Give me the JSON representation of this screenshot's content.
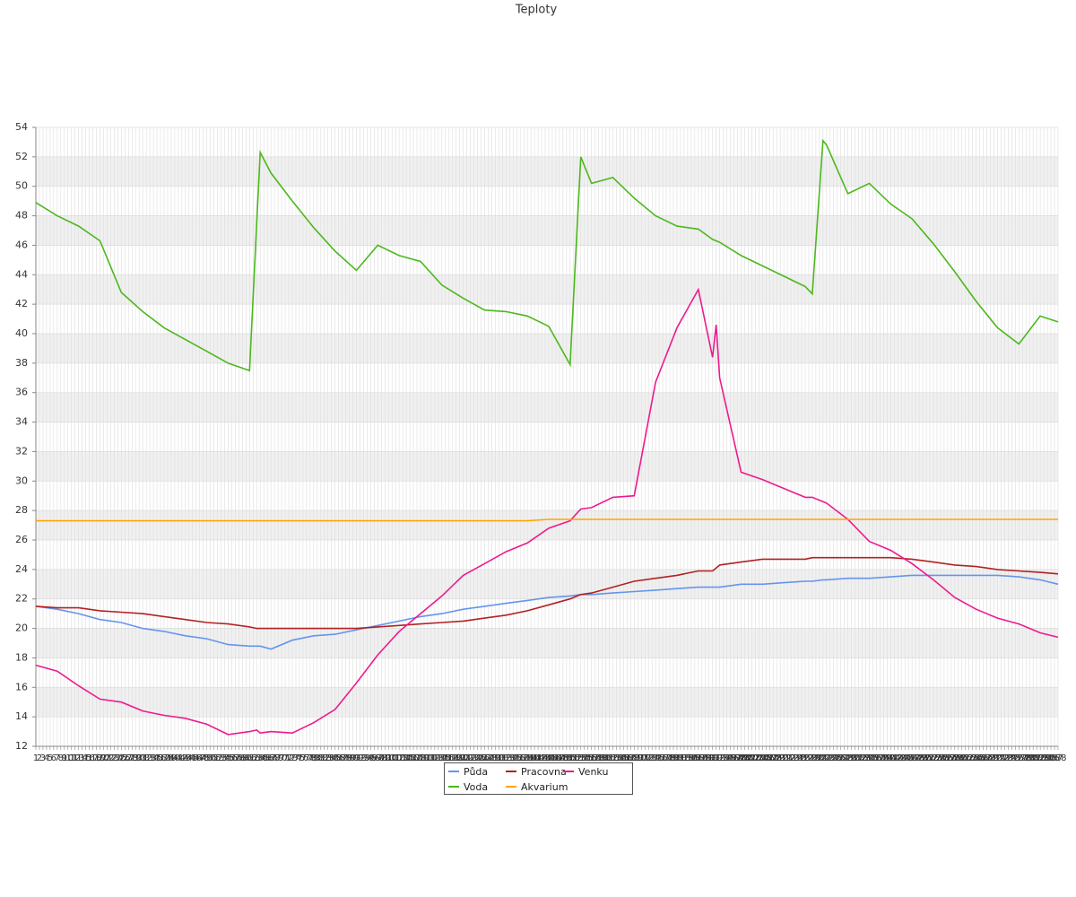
{
  "chart_data": {
    "type": "line",
    "title": "Teploty",
    "x": [
      1,
      7,
      13,
      19,
      25,
      31,
      37,
      43,
      49,
      55,
      61,
      63,
      64,
      67,
      73,
      79,
      85,
      91,
      97,
      103,
      109,
      115,
      121,
      127,
      133,
      139,
      145,
      151,
      154,
      157,
      163,
      169,
      175,
      181,
      187,
      191,
      192,
      193,
      199,
      205,
      211,
      217,
      219,
      222,
      223,
      229,
      235,
      241,
      247,
      253,
      259,
      265,
      271,
      277,
      283,
      288
    ],
    "series": [
      {
        "name": "Půda",
        "color": "#6495ed",
        "values": [
          21.5,
          21.3,
          21.0,
          20.6,
          20.4,
          20.0,
          19.8,
          19.5,
          19.3,
          18.9,
          18.8,
          18.8,
          18.8,
          18.6,
          19.2,
          19.5,
          19.6,
          19.9,
          20.2,
          20.5,
          20.8,
          21.0,
          21.3,
          21.5,
          21.7,
          21.9,
          22.1,
          22.2,
          22.3,
          22.3,
          22.4,
          22.5,
          22.6,
          22.7,
          22.8,
          22.8,
          22.8,
          22.8,
          23.0,
          23.0,
          23.1,
          23.2,
          23.2,
          23.3,
          23.3,
          23.4,
          23.4,
          23.5,
          23.6,
          23.6,
          23.6,
          23.6,
          23.6,
          23.5,
          23.3,
          23.0
        ]
      },
      {
        "name": "Pracovna",
        "color": "#b22222",
        "values": [
          21.5,
          21.4,
          21.4,
          21.2,
          21.1,
          21.0,
          20.8,
          20.6,
          20.4,
          20.3,
          20.1,
          20.0,
          20.0,
          20.0,
          20.0,
          20.0,
          20.0,
          20.0,
          20.1,
          20.2,
          20.3,
          20.4,
          20.5,
          20.7,
          20.9,
          21.2,
          21.6,
          22.0,
          22.3,
          22.4,
          22.8,
          23.2,
          23.4,
          23.6,
          23.9,
          23.9,
          24.1,
          24.3,
          24.5,
          24.7,
          24.7,
          24.7,
          24.8,
          24.8,
          24.8,
          24.8,
          24.8,
          24.8,
          24.7,
          24.5,
          24.3,
          24.2,
          24.0,
          23.9,
          23.8,
          23.7
        ]
      },
      {
        "name": "Venku",
        "color": "#ee1a8e",
        "values": [
          17.5,
          17.1,
          16.1,
          15.2,
          15.0,
          14.4,
          14.1,
          13.9,
          13.5,
          12.8,
          13.0,
          13.1,
          12.9,
          13.0,
          12.9,
          13.6,
          14.5,
          16.3,
          18.2,
          19.8,
          21.0,
          22.2,
          23.6,
          24.4,
          25.2,
          25.8,
          26.8,
          27.3,
          28.1,
          28.2,
          28.9,
          29.0,
          36.7,
          40.4,
          43.0,
          38.4,
          40.6,
          37.0,
          30.6,
          30.1,
          29.5,
          28.9,
          28.9,
          28.6,
          28.5,
          27.4,
          25.9,
          25.3,
          24.4,
          23.3,
          22.1,
          21.3,
          20.7,
          20.3,
          19.7,
          19.4
        ]
      },
      {
        "name": "Voda",
        "color": "#4cb81c",
        "values": [
          48.9,
          48.0,
          47.3,
          46.3,
          42.8,
          41.5,
          40.4,
          39.6,
          38.8,
          38.0,
          37.5,
          47.5,
          52.3,
          50.9,
          49.0,
          47.2,
          45.6,
          44.3,
          46.0,
          45.3,
          44.9,
          43.3,
          42.4,
          41.6,
          41.5,
          41.2,
          40.5,
          37.9,
          52.0,
          50.2,
          50.6,
          49.2,
          48.0,
          47.3,
          47.1,
          46.4,
          46.3,
          46.2,
          45.3,
          44.6,
          43.9,
          43.2,
          42.7,
          53.1,
          52.8,
          49.5,
          50.2,
          48.8,
          47.8,
          46.1,
          44.2,
          42.2,
          40.4,
          39.3,
          41.2,
          40.8
        ]
      },
      {
        "name": "Akvarium",
        "color": "#ffa500",
        "values": [
          27.3,
          27.3,
          27.3,
          27.3,
          27.3,
          27.3,
          27.3,
          27.3,
          27.3,
          27.3,
          27.3,
          27.3,
          27.3,
          27.3,
          27.3,
          27.3,
          27.3,
          27.3,
          27.3,
          27.3,
          27.3,
          27.3,
          27.3,
          27.3,
          27.3,
          27.3,
          27.4,
          27.4,
          27.4,
          27.4,
          27.4,
          27.4,
          27.4,
          27.4,
          27.4,
          27.4,
          27.4,
          27.4,
          27.4,
          27.4,
          27.4,
          27.4,
          27.4,
          27.4,
          27.4,
          27.4,
          27.4,
          27.4,
          27.4,
          27.4,
          27.4,
          27.4,
          27.4,
          27.4,
          27.4,
          27.4
        ]
      }
    ],
    "xlim": [
      1,
      288
    ],
    "xticks": [
      1,
      2,
      3,
      4,
      5,
      6,
      7,
      8,
      9,
      10,
      11,
      12,
      13,
      14,
      15,
      16,
      17,
      18,
      19,
      20,
      21,
      22,
      23,
      24,
      25,
      26,
      27,
      28,
      29,
      30,
      31,
      32,
      33,
      34,
      35,
      36,
      37,
      38,
      39,
      40,
      41,
      42,
      43,
      44,
      45,
      46,
      47,
      48,
      49,
      50,
      51,
      52,
      53,
      54,
      55,
      56,
      57,
      58,
      59,
      60,
      61,
      62,
      63,
      64,
      65,
      66,
      67,
      68,
      69,
      70,
      71,
      72,
      73,
      74,
      75,
      76,
      77,
      78,
      79,
      80,
      81,
      82,
      83,
      84,
      85,
      86,
      87,
      88,
      89,
      90,
      91,
      92,
      93,
      94,
      95,
      96,
      97,
      98,
      99,
      100,
      101,
      102,
      103,
      104,
      105,
      106,
      107,
      108,
      109,
      110,
      111,
      112,
      113,
      114,
      115,
      116,
      117,
      118,
      119,
      120,
      121,
      122,
      123,
      124,
      125,
      126,
      127,
      128,
      129,
      130,
      131,
      132,
      133,
      134,
      135,
      136,
      137,
      138,
      139,
      140,
      141,
      142,
      143,
      144,
      145,
      146,
      147,
      148,
      149,
      150,
      151,
      152,
      153,
      154,
      155,
      156,
      157,
      158,
      159,
      160,
      161,
      162,
      163,
      164,
      165,
      166,
      167,
      168,
      169,
      170,
      171,
      172,
      173,
      174,
      175,
      176,
      177,
      178,
      179,
      180,
      181,
      182,
      183,
      184,
      185,
      186,
      187,
      188,
      189,
      190,
      191,
      192,
      193,
      194,
      195,
      196,
      197,
      198,
      199,
      200,
      201,
      202,
      203,
      204,
      205,
      206,
      207,
      208,
      209,
      210,
      211,
      212,
      213,
      214,
      215,
      216,
      217,
      218,
      219,
      220,
      221,
      222,
      223,
      224,
      225,
      226,
      227,
      228,
      229,
      230,
      231,
      232,
      233,
      234,
      235,
      236,
      237,
      238,
      239,
      240,
      241,
      242,
      243,
      244,
      245,
      246,
      247,
      248,
      249,
      250,
      251,
      252,
      253,
      254,
      255,
      256,
      257,
      258,
      259,
      260,
      261,
      262,
      263,
      264,
      265,
      266,
      267,
      268,
      269,
      270,
      271,
      272,
      273,
      274,
      275,
      276,
      277,
      278,
      279,
      280,
      281,
      282,
      283,
      284,
      285,
      286,
      287,
      288
    ],
    "ylim": [
      12,
      54
    ],
    "yticks": [
      12,
      14,
      16,
      18,
      20,
      22,
      24,
      26,
      28,
      30,
      32,
      34,
      36,
      38,
      40,
      42,
      44,
      46,
      48,
      50,
      52,
      54
    ],
    "grid": true,
    "legend": "bottom"
  }
}
